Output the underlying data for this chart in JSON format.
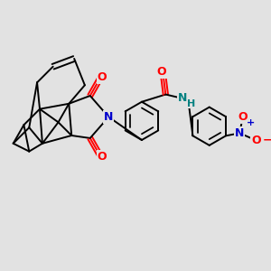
{
  "background_color": "#e2e2e2",
  "line_color": "#000000",
  "bond_width": 1.4,
  "atom_colors": {
    "O": "#ff0000",
    "N_blue": "#0000cc",
    "N_teal": "#008080",
    "plus": "#0000cc",
    "minus": "#ff0000"
  },
  "figsize": [
    3.0,
    3.0
  ],
  "dpi": 100,
  "xlim": [
    0,
    10
  ],
  "ylim": [
    0,
    10
  ]
}
